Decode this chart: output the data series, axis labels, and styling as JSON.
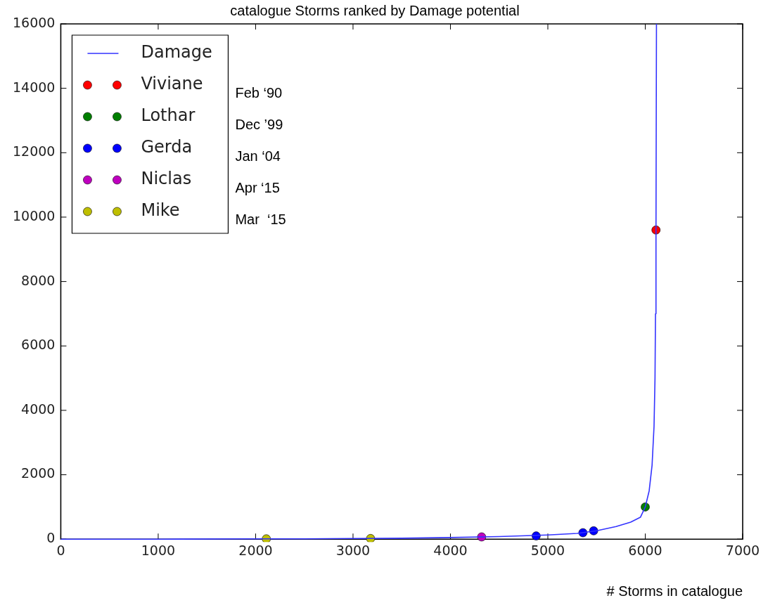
{
  "chart_data": {
    "type": "line",
    "title": "catalogue Storms ranked by Damage potential",
    "xlabel": "# Storms in catalogue",
    "xlim": [
      0,
      7000
    ],
    "xticks": [
      0,
      1000,
      2000,
      3000,
      4000,
      5000,
      6000,
      7000
    ],
    "ylim": [
      0,
      16000
    ],
    "yticks": [
      0,
      2000,
      4000,
      6000,
      8000,
      10000,
      12000,
      14000,
      16000
    ],
    "grid": false,
    "legend": "top left",
    "series": [
      {
        "name": "Damage",
        "color": "#3333ff",
        "marker": "none",
        "x": [
          0,
          1000,
          2000,
          2500,
          3000,
          3500,
          4000,
          4500,
          5000,
          5300,
          5500,
          5700,
          5850,
          5950,
          6000,
          6040,
          6070,
          6090,
          6100,
          6105,
          6110,
          6115
        ],
        "values": [
          0,
          0,
          10,
          10,
          20,
          30,
          50,
          80,
          130,
          180,
          260,
          390,
          530,
          680,
          1000,
          1500,
          2300,
          3500,
          5000,
          7000,
          9600,
          16000
        ]
      },
      {
        "name": "Viviane",
        "type": "scatter",
        "color": "#ff0000",
        "marker": "circle",
        "x": [
          6110
        ],
        "values": [
          9600
        ]
      },
      {
        "name": "Lothar",
        "type": "scatter",
        "color": "#007f00",
        "marker": "circle",
        "x": [
          6000
        ],
        "values": [
          1000
        ]
      },
      {
        "name": "Gerda",
        "type": "scatter",
        "color": "#0000ff",
        "marker": "circle",
        "x": [
          4880,
          5360,
          5470
        ],
        "values": [
          100,
          200,
          260
        ]
      },
      {
        "name": "Niclas",
        "type": "scatter",
        "color": "#bf00bf",
        "marker": "circle",
        "x": [
          4320
        ],
        "values": [
          70
        ]
      },
      {
        "name": "Mike",
        "type": "scatter",
        "color": "#bfbf00",
        "marker": "circle",
        "x": [
          2110,
          3180
        ],
        "values": [
          10,
          20
        ]
      }
    ],
    "annotations": [
      "Feb ‘90",
      "Dec ’99",
      "Jan ‘04",
      "Apr ‘15",
      "Mar  ‘15"
    ]
  }
}
